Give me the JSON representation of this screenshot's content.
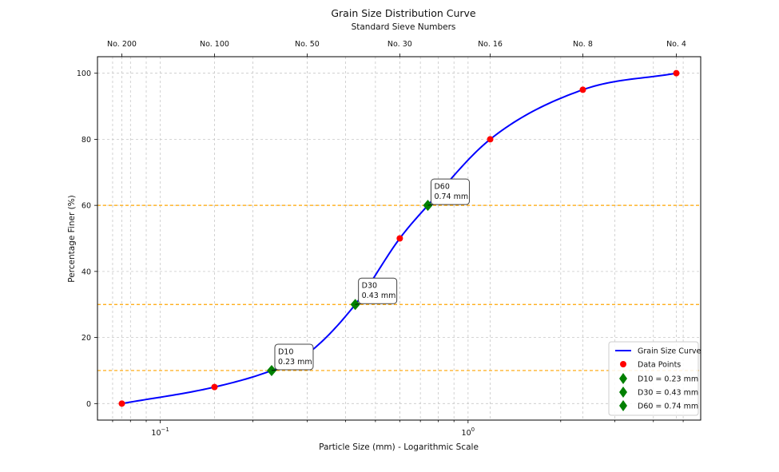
{
  "chart_data": {
    "type": "line",
    "title": "Grain Size Distribution Curve",
    "top_axis_label": "Standard Sieve Numbers",
    "xlabel": "Particle Size (mm) - Logarithmic Scale",
    "ylabel": "Percentage Finer (%)",
    "x_scale": "log",
    "xlim": [
      0.0625,
      5.7
    ],
    "ylim": [
      -5,
      105
    ],
    "y_ticks": [
      0,
      20,
      40,
      60,
      80,
      100
    ],
    "x_tick_labels": [
      {
        "value": 0.1,
        "base": "10",
        "exp": "−1"
      },
      {
        "value": 1,
        "base": "10",
        "exp": "0"
      }
    ],
    "sieves": [
      {
        "label": "No. 200",
        "size": 0.075
      },
      {
        "label": "No. 100",
        "size": 0.15
      },
      {
        "label": "No. 50",
        "size": 0.3
      },
      {
        "label": "No. 30",
        "size": 0.6
      },
      {
        "label": "No. 16",
        "size": 1.18
      },
      {
        "label": "No. 8",
        "size": 2.36
      },
      {
        "label": "No. 4",
        "size": 4.75
      }
    ],
    "series": [
      {
        "name": "Grain Size Curve",
        "color": "#0000ff",
        "style": "line",
        "x": [
          0.075,
          0.15,
          0.23,
          0.3,
          0.43,
          0.6,
          0.74,
          1.18,
          2.36,
          4.75
        ],
        "y": [
          0,
          5,
          10,
          15,
          30,
          50,
          60,
          80,
          95,
          100
        ]
      },
      {
        "name": "Data Points",
        "color": "#ff0000",
        "style": "marker-circle",
        "x": [
          0.075,
          0.15,
          0.3,
          0.6,
          1.18,
          2.36,
          4.75
        ],
        "y": [
          0,
          5,
          15,
          50,
          80,
          95,
          100
        ]
      }
    ],
    "d_values": [
      {
        "name": "D10 = 0.23 mm",
        "label": "D10",
        "value_label": "0.23 mm",
        "x": 0.23,
        "y": 10
      },
      {
        "name": "D30 = 0.43 mm",
        "label": "D30",
        "value_label": "0.43 mm",
        "x": 0.43,
        "y": 30
      },
      {
        "name": "D60 = 0.74 mm",
        "label": "D60",
        "value_label": "0.74 mm",
        "x": 0.74,
        "y": 60
      }
    ],
    "d_marker_color": "#008000",
    "reference_lines": [
      10,
      30,
      60
    ],
    "reference_line_color": "#ffa500",
    "grid": true,
    "legend_position": "lower-right"
  }
}
